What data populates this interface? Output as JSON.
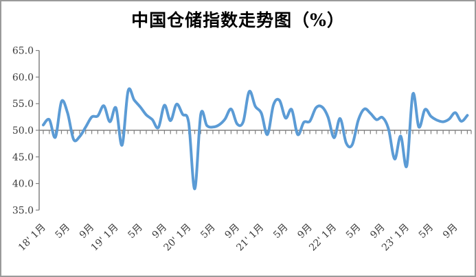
{
  "chart": {
    "title": "中国仓储指数走势图（%）"
  },
  "chart_data": {
    "type": "line",
    "title": "中国仓储指数走势图（%）",
    "series_name": "中国仓储指数",
    "unit": "%",
    "smoothed": true,
    "grid": false,
    "legend": "none",
    "ylim": [
      35,
      65
    ],
    "y_tick_step": 5,
    "x_axis_cross_at": 50,
    "line_color": "#5B9BD5",
    "axis_color": "#808080",
    "y_tick_labels": [
      "65.0",
      "60.0",
      "55.0",
      "50.0",
      "45.0",
      "40.0",
      "35.0"
    ],
    "x_tick_labels": [
      {
        "index": 0,
        "label": "18' 1月"
      },
      {
        "index": 4,
        "label": "5月"
      },
      {
        "index": 8,
        "label": "9月"
      },
      {
        "index": 12,
        "label": "19' 1月"
      },
      {
        "index": 16,
        "label": "5月"
      },
      {
        "index": 20,
        "label": "9月"
      },
      {
        "index": 24,
        "label": "20' 1月"
      },
      {
        "index": 28,
        "label": "5月"
      },
      {
        "index": 32,
        "label": "9月"
      },
      {
        "index": 36,
        "label": "21' 1月"
      },
      {
        "index": 40,
        "label": "5月"
      },
      {
        "index": 44,
        "label": "9月"
      },
      {
        "index": 48,
        "label": "22' 1月"
      },
      {
        "index": 52,
        "label": "5月"
      },
      {
        "index": 56,
        "label": "9月"
      },
      {
        "index": 60,
        "label": "23' 1月"
      },
      {
        "index": 64,
        "label": "5月"
      },
      {
        "index": 68,
        "label": "9月"
      }
    ],
    "x": [
      "2018-01",
      "2018-02",
      "2018-03",
      "2018-04",
      "2018-05",
      "2018-06",
      "2018-07",
      "2018-08",
      "2018-09",
      "2018-10",
      "2018-11",
      "2018-12",
      "2019-01",
      "2019-02",
      "2019-03",
      "2019-04",
      "2019-05",
      "2019-06",
      "2019-07",
      "2019-08",
      "2019-09",
      "2019-10",
      "2019-11",
      "2019-12",
      "2020-01",
      "2020-02",
      "2020-03",
      "2020-04",
      "2020-05",
      "2020-06",
      "2020-07",
      "2020-08",
      "2020-09",
      "2020-10",
      "2020-11",
      "2020-12",
      "2021-01",
      "2021-02",
      "2021-03",
      "2021-04",
      "2021-05",
      "2021-06",
      "2021-07",
      "2021-08",
      "2021-09",
      "2021-10",
      "2021-11",
      "2021-12",
      "2022-01",
      "2022-02",
      "2022-03",
      "2022-04",
      "2022-05",
      "2022-06",
      "2022-07",
      "2022-08",
      "2022-09",
      "2022-10",
      "2022-11",
      "2022-12",
      "2023-01",
      "2023-02",
      "2023-03",
      "2023-04",
      "2023-05",
      "2023-06",
      "2023-07",
      "2023-08",
      "2023-09",
      "2023-10",
      "2023-11"
    ],
    "values": [
      51.0,
      52.0,
      48.7,
      55.4,
      53.3,
      48.3,
      48.8,
      50.6,
      52.5,
      52.7,
      54.6,
      51.6,
      54.2,
      47.2,
      57.4,
      55.7,
      54.4,
      52.9,
      52.0,
      50.5,
      54.7,
      51.8,
      54.9,
      53.0,
      51.4,
      39.0,
      53.0,
      50.9,
      50.6,
      51.0,
      52.1,
      54.0,
      51.2,
      51.6,
      57.3,
      54.5,
      53.2,
      49.2,
      54.8,
      55.6,
      52.3,
      53.9,
      49.2,
      51.5,
      51.7,
      54.2,
      54.4,
      52.5,
      48.6,
      52.2,
      47.6,
      47.3,
      51.9,
      54.0,
      53.2,
      52.0,
      52.4,
      50.2,
      44.6,
      48.9,
      43.3,
      56.8,
      50.6,
      53.9,
      52.6,
      51.9,
      51.6,
      52.1,
      53.3,
      51.7,
      52.8
    ]
  }
}
